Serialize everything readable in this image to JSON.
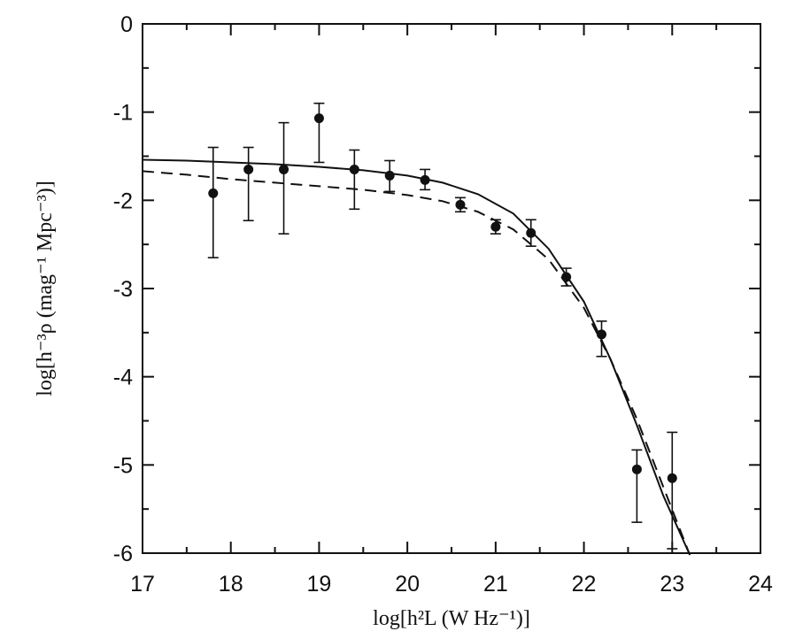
{
  "chart_data": {
    "type": "scatter",
    "title": "",
    "xlabel": "log[h²L (W Hz⁻¹)]",
    "ylabel": "log[h⁻³ρ (mag⁻¹ Mpc⁻³)]",
    "xlim": [
      17,
      24
    ],
    "ylim": [
      -6,
      0
    ],
    "x_ticks": [
      17,
      18,
      19,
      20,
      21,
      22,
      23,
      24
    ],
    "x_tick_labels": [
      "17",
      "18",
      "19",
      "20",
      "21",
      "22",
      "23",
      "24"
    ],
    "y_ticks": [
      0,
      -1,
      -2,
      -3,
      -4,
      -5,
      -6
    ],
    "y_tick_labels": [
      "0",
      "-1",
      "-2",
      "-3",
      "-4",
      "-5",
      "-6"
    ],
    "grid": false,
    "series": [
      {
        "type": "scatter_errorbar",
        "x": [
          17.8,
          18.2,
          18.6,
          19.0,
          19.4,
          19.8,
          20.2,
          20.6,
          21.0,
          21.4,
          21.8,
          22.2,
          22.6,
          23.0
        ],
        "y": [
          -1.92,
          -1.65,
          -1.65,
          -1.07,
          -1.65,
          -1.72,
          -1.77,
          -2.05,
          -2.3,
          -2.37,
          -2.87,
          -3.52,
          -5.05,
          -5.15
        ],
        "y_upper": [
          -1.4,
          -1.4,
          -1.12,
          -0.9,
          -1.43,
          -1.55,
          -1.65,
          -1.97,
          -2.22,
          -2.22,
          -2.77,
          -3.37,
          -4.83,
          -4.63
        ],
        "y_lower": [
          -2.65,
          -2.23,
          -2.38,
          -1.57,
          -2.1,
          -1.9,
          -1.88,
          -2.13,
          -2.38,
          -2.52,
          -2.97,
          -3.77,
          -5.65,
          -5.95
        ]
      },
      {
        "type": "line",
        "style": "solid",
        "x": [
          17.0,
          17.5,
          18.0,
          18.5,
          19.0,
          19.5,
          20.0,
          20.4,
          20.8,
          21.2,
          21.6,
          22.0,
          22.3,
          22.6,
          22.9,
          23.2
        ],
        "y": [
          -1.54,
          -1.55,
          -1.57,
          -1.59,
          -1.62,
          -1.66,
          -1.72,
          -1.8,
          -1.93,
          -2.15,
          -2.55,
          -3.15,
          -3.8,
          -4.55,
          -5.35,
          -6.02
        ]
      },
      {
        "type": "line",
        "style": "dashed",
        "x": [
          17.0,
          17.5,
          18.0,
          18.5,
          19.0,
          19.5,
          20.0,
          20.4,
          20.8,
          21.2,
          21.6,
          22.0,
          22.3,
          22.6,
          22.9,
          23.2
        ],
        "y": [
          -1.67,
          -1.71,
          -1.76,
          -1.8,
          -1.84,
          -1.88,
          -1.94,
          -2.01,
          -2.13,
          -2.33,
          -2.67,
          -3.22,
          -3.8,
          -4.48,
          -5.25,
          -6.02
        ]
      }
    ]
  }
}
